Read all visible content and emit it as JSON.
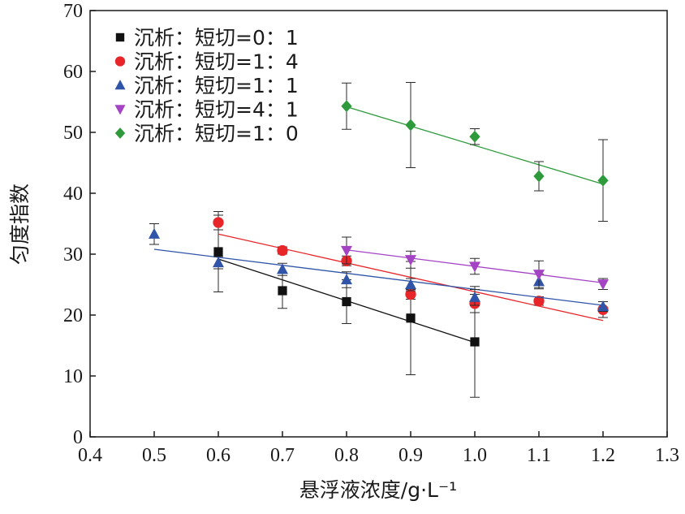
{
  "chart_data": {
    "type": "scatter",
    "xlabel": "悬浮液浓度/g·L⁻¹",
    "ylabel": "匀度指数",
    "xlim": [
      0.4,
      1.3
    ],
    "ylim": [
      0,
      70
    ],
    "xticks": [
      0.4,
      0.5,
      0.6,
      0.7,
      0.8,
      0.9,
      1.0,
      1.1,
      1.2,
      1.3
    ],
    "xtick_labels": [
      "0.4",
      "0.5",
      "0.6",
      "0.7",
      "0.8",
      "0.9",
      "1.0",
      "1.1",
      "1.2",
      "1.3"
    ],
    "yticks": [
      0,
      10,
      20,
      30,
      40,
      50,
      60,
      70
    ],
    "ytick_labels": [
      "0",
      "10",
      "20",
      "30",
      "40",
      "50",
      "60",
      "70"
    ],
    "grid": false,
    "legend_position": "top-left",
    "series": [
      {
        "name": "沉析：短切=0：1",
        "marker": "square",
        "color": "#111111",
        "x": [
          0.6,
          0.7,
          0.8,
          0.9,
          1.0
        ],
        "y": [
          30.4,
          24.0,
          22.2,
          19.5,
          15.6
        ],
        "err": [
          6.6,
          2.9,
          3.6,
          9.3,
          9.1
        ],
        "fit": [
          [
            0.6,
            29.2
          ],
          [
            1.0,
            15.5
          ]
        ]
      },
      {
        "name": "沉析：短切=1：4",
        "marker": "circle",
        "color": "#e8262a",
        "x": [
          0.6,
          0.7,
          0.8,
          0.9,
          1.0,
          1.1,
          1.2
        ],
        "y": [
          35.2,
          30.6,
          28.9,
          23.4,
          21.9,
          22.3,
          20.9
        ],
        "err": [
          1.2,
          0.6,
          0.8,
          0.8,
          1.5,
          0.7,
          1.3
        ],
        "fit": [
          [
            0.6,
            33.3
          ],
          [
            1.2,
            19.1
          ]
        ]
      },
      {
        "name": "沉析：短切=1：1",
        "marker": "triangle-up",
        "color": "#2f54a8",
        "x": [
          0.5,
          0.6,
          0.7,
          0.8,
          0.9,
          1.0,
          1.1,
          1.2
        ],
        "y": [
          33.3,
          28.6,
          27.5,
          25.8,
          25.0,
          22.9,
          25.5,
          21.4
        ],
        "err": [
          1.7,
          1.0,
          1.0,
          1.3,
          1.0,
          1.3,
          1.2,
          0.8
        ],
        "fit": [
          [
            0.5,
            30.8
          ],
          [
            1.2,
            21.6
          ]
        ]
      },
      {
        "name": "沉析：短切=4：1",
        "marker": "triangle-down",
        "color": "#a444c4",
        "x": [
          0.8,
          0.9,
          1.0,
          1.1,
          1.2
        ],
        "y": [
          30.6,
          29.1,
          28.0,
          26.7,
          25.1
        ],
        "err": [
          2.2,
          1.4,
          1.3,
          2.2,
          0.9
        ],
        "fit": [
          [
            0.8,
            30.7
          ],
          [
            1.2,
            25.3
          ]
        ]
      },
      {
        "name": "沉析：短切=1：0",
        "marker": "diamond",
        "color": "#2e9a3c",
        "x": [
          0.8,
          0.9,
          1.0,
          1.1,
          1.2
        ],
        "y": [
          54.3,
          51.2,
          49.3,
          42.8,
          42.1
        ],
        "err": [
          3.8,
          7.0,
          1.3,
          2.4,
          6.7
        ],
        "fit": [
          [
            0.8,
            54.2
          ],
          [
            1.2,
            41.5
          ]
        ]
      }
    ]
  }
}
